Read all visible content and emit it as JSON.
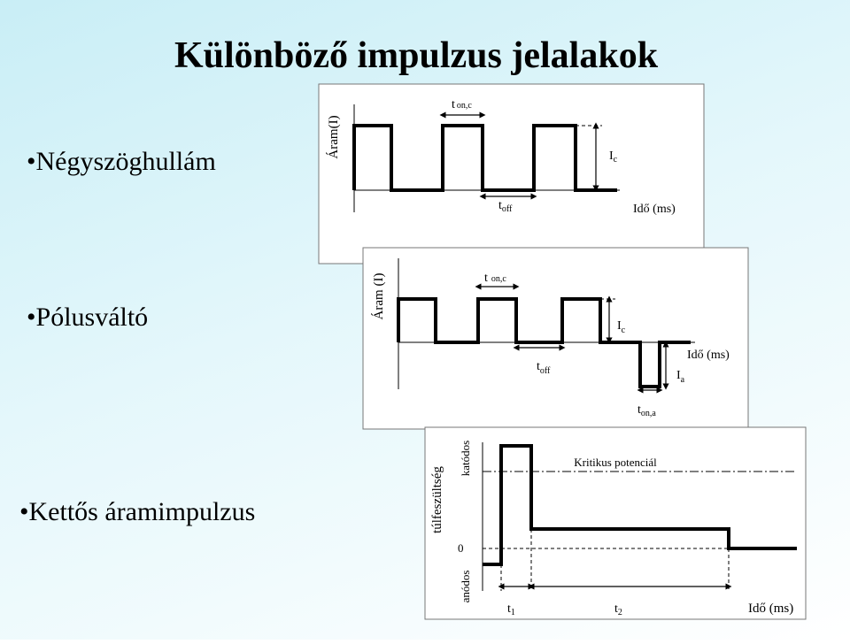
{
  "title": "Különböző impulzus jelalakok",
  "bullets": [
    "•Négyszöghullám",
    "•Pólusváltó",
    "•Kettős áramimpulzus"
  ],
  "diagrams": [
    {
      "y_label": "Áram(I)",
      "x_label": "Idő (ms)",
      "labels": [
        {
          "main": "t",
          "sub": "on,c"
        },
        {
          "main": "t",
          "sub": "off"
        },
        {
          "main": "I",
          "sub": "c"
        }
      ]
    },
    {
      "y_label": "Áram (I)",
      "x_label": "Idő (ms)",
      "labels": [
        {
          "main": "t",
          "sub": "on,c"
        },
        {
          "main": "t",
          "sub": "off"
        },
        {
          "main": "I",
          "sub": "c"
        },
        {
          "main": "I",
          "sub": "a"
        },
        {
          "main": "t",
          "sub": "on,a"
        }
      ]
    },
    {
      "y_label": "túlfeszültség",
      "upper_label": "katódos",
      "lower_label": "anódos",
      "zero_label": "0",
      "critical_label": "Kritikus potenciál",
      "x_label": "Idő (ms)",
      "labels": [
        {
          "main": "t",
          "sub": "1"
        },
        {
          "main": "t",
          "sub": "2"
        }
      ]
    }
  ]
}
